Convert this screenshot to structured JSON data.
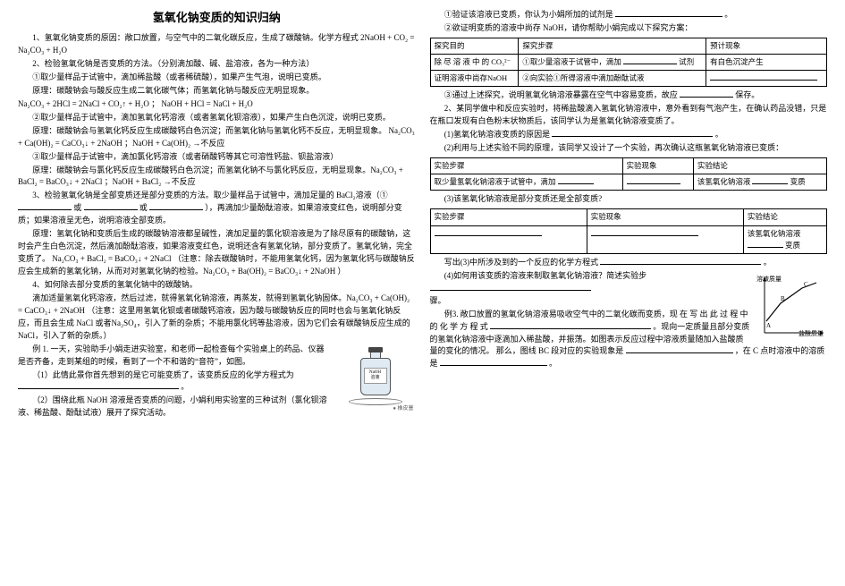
{
  "title": "氢氧化钠变质的知识归纳",
  "left": {
    "p1": "1、氢氧化钠变质的原因：敞口放置，与空气中的二氧化碳反应，生成了碳酸钠。化学方程式 2NaOH + CO₂ = Na₂CO₃ + H₂O",
    "p2": "2、检验氢氧化钠是否变质的方法。（分别滴加酸、碱、盐溶液，各为一种方法）",
    "p3": "①取少量样品于试管中，滴加稀盐酸（或者稀硫酸），如果产生气泡，说明已变质。",
    "p4": "原理：碳酸钠会与酸反应生成二氧化碳气体；而氢氧化钠与酸反应无明显现象。",
    "p5": "Na₂CO₃ + 2HCl = 2NaCl + CO₂↑ + H₂O   ；   NaOH + HCl = NaCl + H₂O",
    "p6": "②取少量样品于试管中，滴加氢氧化钙溶液（或者氢氧化钡溶液），如果产生白色沉淀，说明已变质。",
    "p7": "原理：碳酸钠会与氢氧化钙反应生成碳酸钙白色沉淀；而氢氧化钠与氢氧化钙不反应，无明显现象。 Na₂CO₃ + Ca(OH)₂ = CaCO₃↓ + 2NaOH ；NaOH + Ca(OH)₂ →不反应",
    "p8": "③取少量样品于试管中，滴加氯化钙溶液（或者硝酸钙等其它可溶性钙盐、钡盐溶液）",
    "p9": "原理：碳酸钠会与氯化钙反应生成碳酸钙白色沉淀；而氢氧化钠不与氯化钙反应，无明显现象。Na₂CO₃ + BaCl₂ = BaCO₃↓ + 2NaCl  ；NaOH + BaCl₂ →不反应",
    "p10_a": "3、检验氢氧化钠是全部变质还是部分变质的方法。取少量样品于试管中，滴加足量的 BaCl₂溶液（①",
    "p10_b": "或",
    "p10_c": "或",
    "p10_d": "），再滴加少量酚酞溶液，如果溶液变红色，说明部分变质；如果溶液呈无色，说明溶液全部变质。",
    "p11": "原理：氢氧化钠和变质后生成的碳酸钠溶液都呈碱性，滴加足量的氯化钡溶液是为了除尽原有的碳酸钠，这时会产生白色沉淀，然后滴加酚酞溶液，如果溶液变红色，说明还含有氢氧化钠，部分变质了。氢氧化钠，完全变质了。   Na₂CO₃ + BaCl₂ = BaCO₃↓ + 2NaCl  （注意：除去碳酸钠时，不能用氢氧化钙，因为氢氧化钙与碳酸钠反应会生成新的氢氧化钠，从而对对氢氧化钠的检验。Na₂CO₃ + Ba(OH)₂ = BaCO₃↓ + 2NaOH ）",
    "p12": "4、如何除去部分变质的氢氧化钠中的碳酸钠。",
    "p13": "滴加适量氢氧化钙溶液，然后过滤，就得氢氧化钠溶液，再蒸发，就得到氢氧化钠固体。Na₂CO₃ + Ca(OH)₂ = CaCO₃↓ + 2NaOH （注意：这里用氢氧化钡或者碳酸钙溶液，因为酸与碳酸钠反应的同时也会与氢氧化钠反应，而且会生成 NaCl 或者Na₂SO₄，引入了新的杂质；不能用氯化钙等盐溶液，因为它们会有碳酸钠反应生成的 NaCl，引入了新的杂质。）",
    "p14": "例 1.  一天，实验助手小娟走进实验室，和老师一起检查每个实验桌上的药品、仪器是否齐备，走到某组的时候，看到了一个不和谐的“音符”，如图。",
    "p15_a": "（1）此情此景你首先想到的是它可能变质了，该变质反应的化学方程式为",
    "p15_b": "。",
    "p16": "（2）围绕此瓶 NaOH 溶液是否变质的问题，小娟利用实验室的三种试剂（氯化钡溶液、稀盐酸、酚酞试液）展开了探究活动。",
    "bottle_label": "NaOH\\n溶液",
    "dish_label": "● 橡皮塞"
  },
  "right": {
    "p1_a": "①验证该溶液已变质，你认为小娟所加的试剂是",
    "p1_b": "。",
    "p2": "②欲证明变质的溶液中尚存 NaOH，请你帮助小娟完成以下探究方案：",
    "table1": {
      "h1": "探究目的",
      "h2": "探究步骤",
      "h3": "预计现象",
      "r1c1": "除 尽 溶 液 中 的 CO₃²⁻",
      "r1c2": "①取少量溶液于试管中，滴加",
      "r1c2b": "试剂",
      "r1c3": "有白色沉淀产生",
      "r2c1": "证明溶液中尚存NaOH",
      "r2c2": "②向实验①所得溶液中滴加酚酞试液"
    },
    "p3_a": "③通过上述探究，说明氢氧化钠溶液暴露在空气中容易变质，故应",
    "p3_b": "保存。",
    "p4": "2、某同学做中和反应实验时，将稀盐酸滴入氢氧化钠溶液中，意外看到有气泡产生，在确认药品没错，只是在瓶口发现有白色粉末状物质后，该同学认为是氢氧化钠溶液变质了。",
    "p5_a": "(1)氢氧化钠溶液变质的原因是",
    "p5_b": "。",
    "p6": "(2)利用与上述实验不同的原理，该同学又设计了一个实验，再次确认这瓶氢氧化钠溶液已变质：",
    "table2": {
      "h1": "实验步骤",
      "h2": "实验现象",
      "h3": "实验结论",
      "r1c1": "取少量氢氧化钠溶液于试管中，滴加",
      "r1c3_a": "该氢氧化钠溶液",
      "r1c3_b": "变质"
    },
    "p7": "(3)该氢氧化钠溶液是部分变质还是全部变质?",
    "table3": {
      "h1": "实验步骤",
      "h2": "实验现象",
      "h3": "实验结论",
      "r1c3_a": "该氢氧化钠溶液",
      "r1c3_b": "变质"
    },
    "p8_a": "写出(3)中所涉及到的一个反应的化学方程式",
    "p8_b": "。",
    "p9_a": "(4)如何用该变质的溶液来制取氢氧化钠溶液？简述实验步",
    "p9_b": "骤。",
    "ex3_a": "例3.   敞口放置的氢氧化钠溶液易吸收空气中的二氧化碳而变质，现 在 写 出 此 过 程 中 的 化 学 方 程 式",
    "ex3_b": "。现向一定质量且部分变质的氢氧化钠溶液中逐滴加入稀盐酸，并振荡。如图表示反应过程中溶液质量随加入盐酸质量的变化的情况。  那么，图线 BC 段对应的实验现象是",
    "ex3_c": "，在 C 点时溶液中的溶质是",
    "ex3_d": "。",
    "graph": {
      "xlabel": "盐酸质量",
      "ylabel": "溶液\\n质量",
      "points": [
        "A",
        "B",
        "C"
      ],
      "bg": "#ffffff",
      "axis_color": "#000000",
      "line_color": "#000000",
      "ax": [
        10,
        68,
        10,
        8
      ],
      "seg": [
        [
          12,
          55
        ],
        [
          28,
          35
        ],
        [
          52,
          18
        ],
        [
          68,
          12
        ]
      ]
    }
  }
}
